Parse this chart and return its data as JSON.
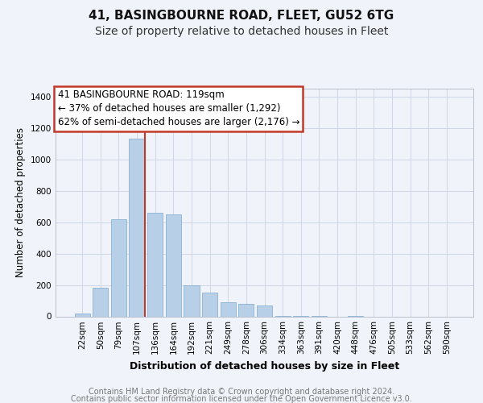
{
  "title1": "41, BASINGBOURNE ROAD, FLEET, GU52 6TG",
  "title2": "Size of property relative to detached houses in Fleet",
  "xlabel": "Distribution of detached houses by size in Fleet",
  "ylabel": "Number of detached properties",
  "footer1": "Contains HM Land Registry data © Crown copyright and database right 2024.",
  "footer2": "Contains public sector information licensed under the Open Government Licence v3.0.",
  "annotation_line1": "41 BASINGBOURNE ROAD: 119sqm",
  "annotation_line2": "← 37% of detached houses are smaller (1,292)",
  "annotation_line3": "62% of semi-detached houses are larger (2,176) →",
  "categories": [
    "22sqm",
    "50sqm",
    "79sqm",
    "107sqm",
    "136sqm",
    "164sqm",
    "192sqm",
    "221sqm",
    "249sqm",
    "278sqm",
    "306sqm",
    "334sqm",
    "363sqm",
    "391sqm",
    "420sqm",
    "448sqm",
    "476sqm",
    "505sqm",
    "533sqm",
    "562sqm",
    "590sqm"
  ],
  "values": [
    20,
    180,
    620,
    1130,
    660,
    650,
    200,
    150,
    90,
    80,
    70,
    5,
    5,
    5,
    0,
    5,
    0,
    0,
    0,
    0,
    0
  ],
  "bar_color": "#b8cfe8",
  "bar_edge_color": "#7aaace",
  "vline_color": "#c0392b",
  "vline_index": 3.45,
  "annotation_box_edgecolor": "#c0392b",
  "ylim": [
    0,
    1450
  ],
  "yticks": [
    0,
    200,
    400,
    600,
    800,
    1000,
    1200,
    1400
  ],
  "grid_color": "#d0d8e8",
  "bg_color": "#f0f4fa",
  "plot_bg": "#f0f4fa",
  "title1_fontsize": 11,
  "title2_fontsize": 10,
  "xlabel_fontsize": 9,
  "ylabel_fontsize": 8.5,
  "tick_fontsize": 7.5,
  "footer_fontsize": 7,
  "annotation_fontsize": 8.5
}
